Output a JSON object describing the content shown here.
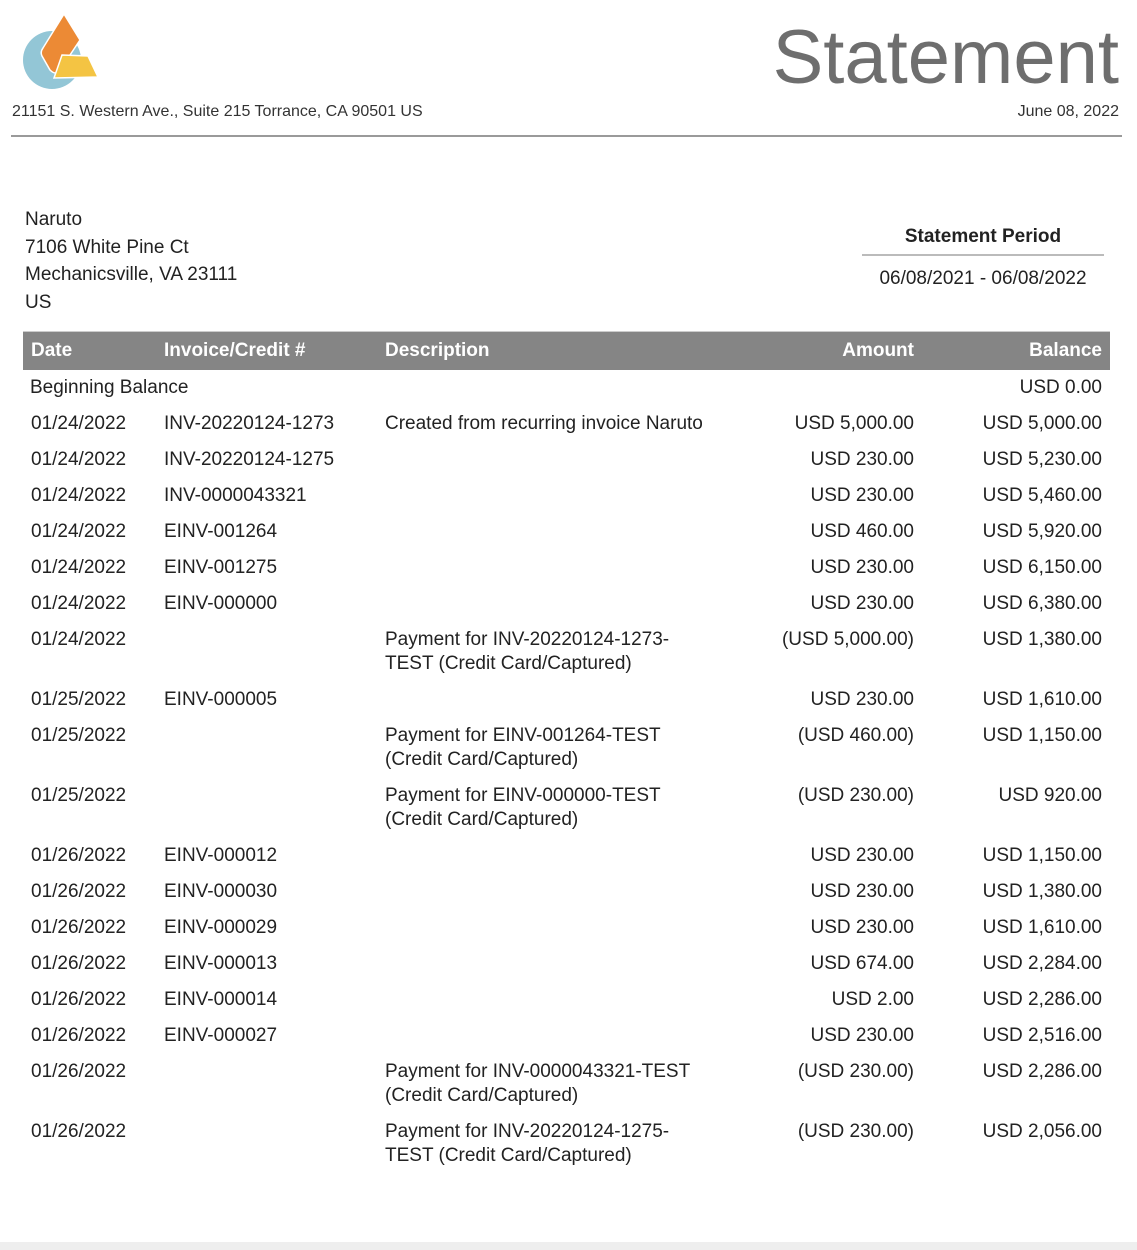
{
  "header": {
    "company_address": "21151 S. Western Ave., Suite 215 Torrance, CA 90501 US",
    "title": "Statement",
    "date": "June 08, 2022"
  },
  "customer": {
    "name": "Naruto",
    "street": "7106 White Pine Ct",
    "city": "Mechanicsville, VA 23111",
    "country": "US"
  },
  "period": {
    "label": "Statement Period",
    "value": "06/08/2021 -  06/08/2022"
  },
  "table": {
    "columns": [
      "Date",
      "Invoice/Credit #",
      "Description",
      "Amount",
      "Balance"
    ],
    "beginning": {
      "label": "Beginning Balance",
      "balance": "USD 0.00"
    },
    "rows": [
      {
        "date": "01/24/2022",
        "inv": "INV-20220124-1273",
        "desc": "Created from recurring invoice Naruto",
        "amount": "USD 5,000.00",
        "balance": "USD 5,000.00"
      },
      {
        "date": "01/24/2022",
        "inv": "INV-20220124-1275",
        "desc": "",
        "amount": "USD 230.00",
        "balance": "USD 5,230.00"
      },
      {
        "date": "01/24/2022",
        "inv": "INV-0000043321",
        "desc": "",
        "amount": "USD 230.00",
        "balance": "USD 5,460.00"
      },
      {
        "date": "01/24/2022",
        "inv": "EINV-001264",
        "desc": "",
        "amount": "USD 460.00",
        "balance": "USD 5,920.00"
      },
      {
        "date": "01/24/2022",
        "inv": "EINV-001275",
        "desc": "",
        "amount": "USD 230.00",
        "balance": "USD 6,150.00"
      },
      {
        "date": "01/24/2022",
        "inv": "EINV-000000",
        "desc": "",
        "amount": "USD 230.00",
        "balance": "USD 6,380.00"
      },
      {
        "date": "01/24/2022",
        "inv": "",
        "desc": "Payment for INV-20220124-1273-TEST (Credit Card/Captured)",
        "amount": "(USD 5,000.00)",
        "balance": "USD 1,380.00"
      },
      {
        "date": "01/25/2022",
        "inv": "EINV-000005",
        "desc": "",
        "amount": "USD 230.00",
        "balance": "USD 1,610.00"
      },
      {
        "date": "01/25/2022",
        "inv": "",
        "desc": "Payment for EINV-001264-TEST (Credit Card/Captured)",
        "amount": "(USD 460.00)",
        "balance": "USD 1,150.00"
      },
      {
        "date": "01/25/2022",
        "inv": "",
        "desc": "Payment for EINV-000000-TEST (Credit Card/Captured)",
        "amount": "(USD 230.00)",
        "balance": "USD 920.00"
      },
      {
        "date": "01/26/2022",
        "inv": "EINV-000012",
        "desc": "",
        "amount": "USD 230.00",
        "balance": "USD 1,150.00"
      },
      {
        "date": "01/26/2022",
        "inv": "EINV-000030",
        "desc": "",
        "amount": "USD 230.00",
        "balance": "USD 1,380.00"
      },
      {
        "date": "01/26/2022",
        "inv": "EINV-000029",
        "desc": "",
        "amount": "USD 230.00",
        "balance": "USD 1,610.00"
      },
      {
        "date": "01/26/2022",
        "inv": "EINV-000013",
        "desc": "",
        "amount": "USD 674.00",
        "balance": "USD 2,284.00"
      },
      {
        "date": "01/26/2022",
        "inv": "EINV-000014",
        "desc": "",
        "amount": "USD 2.00",
        "balance": "USD 2,286.00"
      },
      {
        "date": "01/26/2022",
        "inv": "EINV-000027",
        "desc": "",
        "amount": "USD 230.00",
        "balance": "USD 2,516.00"
      },
      {
        "date": "01/26/2022",
        "inv": "",
        "desc": "Payment for INV-0000043321-TEST (Credit Card/Captured)",
        "amount": "(USD 230.00)",
        "balance": "USD 2,286.00"
      },
      {
        "date": "01/26/2022",
        "inv": "",
        "desc": "Payment for INV-20220124-1275-TEST (Credit Card/Captured)",
        "amount": "(USD 230.00)",
        "balance": "USD 2,056.00"
      }
    ]
  },
  "colors": {
    "header_bg": "#858585",
    "logo_orange": "#ec8a35",
    "logo_yellow": "#f4c443",
    "logo_blue": "#93c6d6"
  }
}
